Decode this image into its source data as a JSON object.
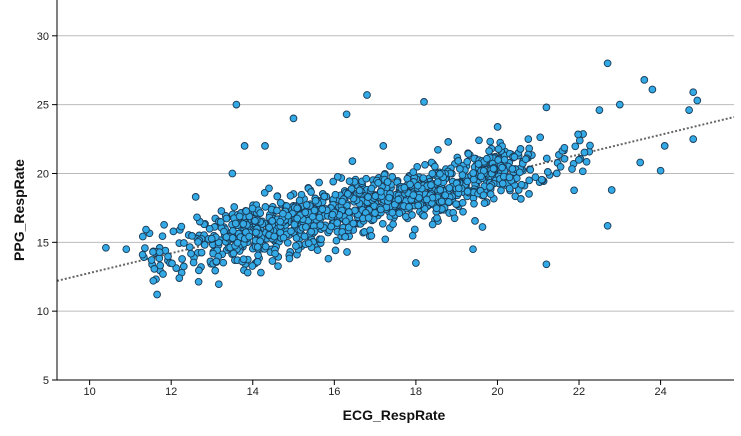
{
  "chart_data": {
    "type": "scatter",
    "xlabel": "ECG_RespRate",
    "ylabel": "PPG_RespRate",
    "xlim": [
      9.2,
      25.8
    ],
    "ylim": [
      5,
      32.6
    ],
    "x_ticks": [
      10,
      12,
      14,
      16,
      18,
      20,
      22,
      24
    ],
    "y_ticks": [
      5,
      10,
      15,
      20,
      25,
      30
    ],
    "grid": "horizontal",
    "legend": "none",
    "colors": {
      "point_fill": "#33a9e6",
      "point_edge": "#1a3a55",
      "fit_line": "#666666",
      "grid": "#bbbbbb",
      "axis": "#000000"
    },
    "fit_line": {
      "style": "dotted",
      "x": [
        9.2,
        25.8
      ],
      "y": [
        12.2,
        24.1
      ]
    },
    "annotated_points": [
      {
        "x": 13.6,
        "y": 25.0
      },
      {
        "x": 15.0,
        "y": 24.0
      },
      {
        "x": 16.8,
        "y": 25.7
      },
      {
        "x": 16.3,
        "y": 24.3
      },
      {
        "x": 18.2,
        "y": 25.2
      },
      {
        "x": 22.7,
        "y": 28.0
      },
      {
        "x": 23.6,
        "y": 26.8
      },
      {
        "x": 23.8,
        "y": 26.1
      },
      {
        "x": 24.8,
        "y": 25.9
      },
      {
        "x": 24.9,
        "y": 25.3
      },
      {
        "x": 23.0,
        "y": 25.0
      },
      {
        "x": 21.2,
        "y": 24.8
      },
      {
        "x": 22.5,
        "y": 24.6
      },
      {
        "x": 24.7,
        "y": 24.6
      },
      {
        "x": 10.4,
        "y": 14.6
      },
      {
        "x": 10.9,
        "y": 14.5
      },
      {
        "x": 11.3,
        "y": 14.1
      },
      {
        "x": 11.8,
        "y": 12.7
      },
      {
        "x": 12.2,
        "y": 12.4
      },
      {
        "x": 14.2,
        "y": 12.8
      },
      {
        "x": 18.0,
        "y": 13.5
      },
      {
        "x": 21.2,
        "y": 13.4
      },
      {
        "x": 22.7,
        "y": 16.2
      },
      {
        "x": 19.4,
        "y": 14.5
      },
      {
        "x": 12.6,
        "y": 18.3
      },
      {
        "x": 13.5,
        "y": 20.0
      },
      {
        "x": 14.3,
        "y": 22.0
      },
      {
        "x": 13.8,
        "y": 22.0
      },
      {
        "x": 17.2,
        "y": 22.0
      },
      {
        "x": 24.0,
        "y": 20.2
      },
      {
        "x": 24.1,
        "y": 22.0
      },
      {
        "x": 24.8,
        "y": 22.5
      },
      {
        "x": 23.5,
        "y": 20.8
      },
      {
        "x": 22.8,
        "y": 18.8
      }
    ],
    "trend": {
      "slope": 0.717,
      "intercept": 5.6,
      "noise_sd": 1.05,
      "n": 1150,
      "x_min": 11.3,
      "x_max": 22.4
    }
  }
}
